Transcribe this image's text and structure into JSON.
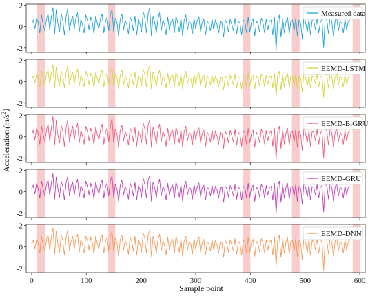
{
  "chart_data": {
    "type": "line",
    "xlabel": "Sample point",
    "ylabel": "Acceleration",
    "ylabel_unit": "m/s",
    "ylabel_unit_exponent": "2",
    "xlim": [
      -10,
      610
    ],
    "ylim": [
      -2.4,
      2.1
    ],
    "xticks": [
      0,
      100,
      200,
      300,
      400,
      500,
      600
    ],
    "yticks": [
      -2,
      0,
      2
    ],
    "highlight_bands": [
      [
        10,
        24
      ],
      [
        140,
        153
      ],
      [
        387,
        400
      ],
      [
        476,
        490
      ],
      [
        587,
        600
      ]
    ],
    "legend_position": "top-right",
    "series": [
      {
        "name": "Measured data",
        "color": "#1fa3d9",
        "values": [
          0.3,
          0.6,
          -0.2,
          0.8,
          0.4,
          -0.6,
          1.1,
          0.2,
          -0.4,
          0.7,
          1.2,
          -0.3,
          0.9,
          1.8,
          -0.7,
          1.6,
          0.3,
          -0.5,
          1.2,
          0.6,
          -0.8,
          0.9,
          1.7,
          -0.4,
          0.5,
          1.0,
          -0.2,
          0.8,
          1.3,
          -0.5,
          0.7,
          0.2,
          -0.6,
          1.1,
          0.6,
          -0.3,
          0.9,
          0.4,
          -0.7,
          1.0,
          0.3,
          -0.2,
          0.8,
          1.2,
          -0.6,
          0.5,
          0.9,
          -0.4,
          1.1,
          1.6,
          -0.5,
          0.8,
          0.4,
          -0.9,
          0.7,
          1.2,
          -0.3,
          0.6,
          0.2,
          -0.7,
          0.9,
          0.5,
          -0.4,
          1.0,
          -0.8,
          0.6,
          0.3,
          -0.5,
          1.4,
          0.8,
          -0.6,
          1.2,
          1.8,
          -0.9,
          1.0,
          0.4,
          -0.6,
          0.7,
          1.3,
          -0.4,
          0.6,
          0.2,
          -0.8,
          0.9,
          -0.3,
          0.5,
          0.7,
          -0.6,
          1.0,
          0.4,
          -0.5,
          0.8,
          -0.9,
          0.6,
          1.1,
          -0.3,
          0.5,
          0.3,
          -0.7,
          0.8,
          -0.2,
          0.6,
          0.9,
          -0.5,
          0.4,
          0.7,
          -0.8,
          0.5,
          0.3,
          -0.4,
          0.7,
          -0.3,
          0.6,
          0.2,
          -0.6,
          0.5,
          0.4,
          -1.0,
          0.6,
          0.3,
          -0.5,
          0.7,
          0.2,
          -0.4,
          0.8,
          -0.7,
          0.5,
          0.3,
          -0.8,
          0.6,
          0.5,
          -0.6,
          0.9,
          -0.5,
          0.4,
          0.7,
          -0.9,
          0.5,
          0.3,
          -0.5,
          0.8,
          0.4,
          -0.6,
          0.7,
          -0.3,
          0.5,
          0.6,
          -0.8,
          0.9,
          -2.3,
          0.6,
          1.1,
          -1.0,
          0.8,
          -0.6,
          0.4,
          0.9,
          -0.7,
          0.5,
          0.6,
          -0.4,
          0.8,
          -0.9,
          0.6,
          0.3,
          -1.2,
          1.0,
          0.4,
          -0.5,
          0.7,
          -0.8,
          0.6,
          0.5,
          -0.3,
          0.8,
          -0.6,
          0.4,
          0.7,
          -2.0,
          1.2,
          0.5,
          -0.7,
          1.0,
          0.4,
          -0.9,
          0.6,
          0.8,
          -0.4,
          0.5,
          0.3,
          -0.6,
          0.7,
          -0.3,
          0.5,
          0.6
        ],
        "x_start": 0,
        "x_step": 3
      },
      {
        "name": "EEMD-LSTM",
        "color": "#d4d43a",
        "values": [
          0.3,
          0.5,
          -0.1,
          0.7,
          0.4,
          -0.5,
          1.0,
          0.3,
          -0.3,
          0.7,
          1.1,
          -0.2,
          0.8,
          1.6,
          -0.6,
          1.4,
          0.3,
          -0.4,
          1.0,
          0.6,
          -0.6,
          0.8,
          1.5,
          -0.3,
          0.5,
          0.9,
          -0.2,
          0.7,
          1.2,
          -0.4,
          0.6,
          0.2,
          -0.5,
          1.0,
          0.5,
          -0.3,
          0.8,
          0.4,
          -0.6,
          0.9,
          0.3,
          -0.2,
          0.7,
          1.1,
          -0.5,
          0.5,
          0.8,
          -0.3,
          1.0,
          1.4,
          -0.4,
          0.7,
          0.4,
          -0.7,
          0.6,
          1.1,
          -0.3,
          0.5,
          0.2,
          -0.6,
          0.8,
          0.5,
          -0.3,
          0.9,
          -0.6,
          0.5,
          0.3,
          -0.4,
          1.2,
          0.7,
          -0.5,
          1.1,
          1.5,
          -0.7,
          0.9,
          0.4,
          -0.5,
          0.6,
          1.1,
          -0.3,
          0.5,
          0.2,
          -0.6,
          0.8,
          -0.2,
          0.5,
          0.6,
          -0.5,
          0.9,
          0.4,
          -0.4,
          0.7,
          -0.7,
          0.5,
          1.0,
          -0.2,
          0.4,
          0.3,
          -0.6,
          0.7,
          -0.2,
          0.5,
          0.8,
          -0.4,
          0.4,
          0.6,
          -0.6,
          0.5,
          0.3,
          -0.3,
          0.6,
          -0.2,
          0.5,
          0.2,
          -0.5,
          0.4,
          0.4,
          -0.8,
          0.5,
          0.3,
          -0.4,
          0.6,
          0.2,
          -0.3,
          0.7,
          -0.6,
          0.4,
          0.3,
          -0.7,
          0.5,
          0.4,
          -0.5,
          0.8,
          -0.4,
          0.4,
          0.6,
          -0.7,
          0.5,
          0.3,
          -0.4,
          0.7,
          0.4,
          -0.5,
          0.6,
          -0.2,
          0.4,
          0.5,
          -0.6,
          0.8,
          -1.4,
          0.6,
          1.0,
          -0.8,
          0.7,
          -0.5,
          0.4,
          0.8,
          -0.6,
          0.5,
          0.5,
          -0.3,
          0.7,
          -0.7,
          0.5,
          0.3,
          -1.0,
          0.9,
          0.4,
          -0.4,
          0.6,
          -0.6,
          0.5,
          0.4,
          -0.2,
          0.7,
          -0.5,
          0.4,
          0.6,
          -1.5,
          1.0,
          0.5,
          -0.6,
          0.9,
          0.4,
          -0.7,
          0.5,
          0.7,
          -0.3,
          0.5,
          0.3,
          -0.5,
          0.6,
          -0.2,
          0.4,
          0.5
        ],
        "x_start": 0,
        "x_step": 3
      },
      {
        "name": "EEMD-BiGRU",
        "color": "#ee5a80",
        "values": [
          0.2,
          0.6,
          -0.3,
          0.8,
          0.3,
          -0.7,
          1.0,
          0.2,
          -0.5,
          0.6,
          1.2,
          -0.4,
          0.8,
          1.9,
          -0.8,
          1.5,
          0.2,
          -0.6,
          1.1,
          0.5,
          -0.9,
          0.8,
          1.6,
          -0.5,
          0.4,
          1.0,
          -0.3,
          0.7,
          1.3,
          -0.6,
          0.6,
          0.1,
          -0.7,
          1.0,
          0.5,
          -0.4,
          0.8,
          0.3,
          -0.8,
          0.9,
          0.2,
          -0.3,
          0.7,
          1.2,
          -0.7,
          0.4,
          0.8,
          -0.5,
          1.0,
          1.7,
          -0.6,
          0.7,
          0.3,
          -1.0,
          0.6,
          1.1,
          -0.4,
          0.5,
          0.1,
          -0.8,
          0.8,
          0.4,
          -0.5,
          0.9,
          -0.9,
          0.5,
          0.2,
          -0.6,
          1.3,
          0.7,
          -0.7,
          1.1,
          1.6,
          -1.0,
          0.9,
          0.3,
          -0.7,
          0.6,
          1.2,
          -0.5,
          0.5,
          0.1,
          -0.9,
          0.8,
          -0.4,
          0.4,
          0.6,
          -0.7,
          0.9,
          0.3,
          -0.6,
          0.7,
          -1.0,
          0.5,
          1.0,
          -0.4,
          0.4,
          0.2,
          -0.8,
          0.7,
          -0.3,
          0.5,
          0.8,
          -0.6,
          0.3,
          0.6,
          -0.9,
          0.4,
          0.2,
          -0.5,
          0.6,
          -0.4,
          0.5,
          0.1,
          -0.7,
          0.4,
          0.3,
          -1.1,
          0.5,
          0.2,
          -0.6,
          0.6,
          0.1,
          -0.5,
          0.7,
          -0.8,
          0.4,
          0.2,
          -0.9,
          0.5,
          0.4,
          -0.7,
          0.8,
          -0.6,
          0.3,
          0.6,
          -1.0,
          0.4,
          0.2,
          -0.6,
          0.7,
          0.3,
          -0.7,
          0.6,
          -0.4,
          0.4,
          0.5,
          -0.9,
          0.8,
          -2.2,
          0.5,
          1.0,
          -1.1,
          0.7,
          -0.7,
          0.3,
          0.8,
          -0.8,
          0.4,
          0.5,
          -0.5,
          0.7,
          -1.0,
          0.5,
          0.2,
          -1.3,
          0.9,
          0.3,
          -0.6,
          0.6,
          -0.9,
          0.5,
          0.4,
          -0.4,
          0.7,
          -0.7,
          0.3,
          0.6,
          -2.0,
          1.1,
          0.4,
          -0.8,
          0.9,
          0.3,
          -1.0,
          0.5,
          0.7,
          -0.5,
          0.4,
          0.2,
          -0.7,
          0.6,
          -0.4,
          0.4,
          0.5
        ],
        "x_start": 0,
        "x_step": 3
      },
      {
        "name": "EEMD-GRU",
        "color": "#c040b8",
        "values": [
          0.3,
          0.6,
          -0.2,
          0.8,
          0.3,
          -0.6,
          1.0,
          0.3,
          -0.4,
          0.7,
          1.1,
          -0.3,
          0.8,
          1.7,
          -0.7,
          1.4,
          0.3,
          -0.5,
          1.0,
          0.5,
          -0.8,
          0.8,
          1.5,
          -0.4,
          0.5,
          0.9,
          -0.3,
          0.7,
          1.2,
          -0.5,
          0.6,
          0.2,
          -0.6,
          1.0,
          0.5,
          -0.3,
          0.8,
          0.3,
          -0.7,
          0.9,
          0.3,
          -0.2,
          0.7,
          1.1,
          -0.6,
          0.5,
          0.8,
          -0.4,
          1.0,
          1.5,
          -0.5,
          0.7,
          0.3,
          -0.9,
          0.6,
          1.1,
          -0.3,
          0.5,
          0.2,
          -0.7,
          0.8,
          0.4,
          -0.4,
          0.9,
          -0.8,
          0.5,
          0.3,
          -0.5,
          1.3,
          0.7,
          -0.6,
          1.1,
          1.5,
          -0.9,
          0.9,
          0.4,
          -0.6,
          0.6,
          1.2,
          -0.4,
          0.5,
          0.2,
          -0.8,
          0.8,
          -0.3,
          0.4,
          0.6,
          -0.6,
          0.9,
          0.4,
          -0.5,
          0.7,
          -0.9,
          0.5,
          1.0,
          -0.3,
          0.4,
          0.3,
          -0.7,
          0.7,
          -0.2,
          0.5,
          0.8,
          -0.5,
          0.4,
          0.6,
          -0.8,
          0.4,
          0.3,
          -0.4,
          0.6,
          -0.3,
          0.5,
          0.2,
          -0.6,
          0.4,
          0.4,
          -1.0,
          0.5,
          0.3,
          -0.5,
          0.6,
          0.2,
          -0.4,
          0.7,
          -0.7,
          0.4,
          0.3,
          -0.8,
          0.5,
          0.4,
          -0.6,
          0.8,
          -0.5,
          0.4,
          0.6,
          -0.9,
          0.4,
          0.3,
          -0.5,
          0.7,
          0.4,
          -0.6,
          0.6,
          -0.3,
          0.4,
          0.5,
          -0.8,
          0.8,
          -2.1,
          0.5,
          1.0,
          -1.0,
          0.7,
          -0.6,
          0.4,
          0.8,
          -0.7,
          0.4,
          0.5,
          -0.4,
          0.7,
          -0.9,
          0.5,
          0.3,
          -1.2,
          0.9,
          0.4,
          -0.5,
          0.6,
          -0.8,
          0.5,
          0.4,
          -0.3,
          0.7,
          -0.6,
          0.4,
          0.6,
          -1.9,
          1.0,
          0.5,
          -0.7,
          0.9,
          0.4,
          -0.9,
          0.5,
          0.7,
          -0.4,
          0.4,
          0.3,
          -0.6,
          0.6,
          -0.3,
          0.4,
          0.5
        ],
        "x_start": 0,
        "x_step": 3
      },
      {
        "name": "EEMD-DNN",
        "color": "#f59a5a",
        "values": [
          0.3,
          0.6,
          -0.2,
          0.7,
          0.4,
          -0.6,
          1.0,
          0.2,
          -0.4,
          0.7,
          1.1,
          -0.3,
          0.9,
          1.8,
          -0.7,
          1.5,
          0.3,
          -0.5,
          1.1,
          0.6,
          -0.8,
          0.9,
          1.6,
          -0.4,
          0.5,
          1.0,
          -0.2,
          0.8,
          1.2,
          -0.5,
          0.7,
          0.2,
          -0.6,
          1.0,
          0.6,
          -0.3,
          0.9,
          0.4,
          -0.7,
          1.0,
          0.3,
          -0.2,
          0.8,
          1.1,
          -0.6,
          0.5,
          0.9,
          -0.4,
          1.0,
          1.5,
          -0.5,
          0.8,
          0.4,
          -0.9,
          0.7,
          1.1,
          -0.3,
          0.6,
          0.2,
          -0.7,
          0.9,
          0.5,
          -0.4,
          1.0,
          -0.8,
          0.6,
          0.3,
          -0.5,
          1.3,
          0.8,
          -0.6,
          1.1,
          1.6,
          -0.9,
          1.0,
          0.4,
          -0.6,
          0.7,
          1.2,
          -0.4,
          0.6,
          0.2,
          -0.8,
          0.9,
          -0.3,
          0.5,
          0.7,
          -0.6,
          1.0,
          0.4,
          -0.5,
          0.8,
          -0.9,
          0.6,
          1.0,
          -0.3,
          0.5,
          0.3,
          -0.7,
          0.8,
          -0.2,
          0.6,
          0.9,
          -0.5,
          0.4,
          0.7,
          -0.8,
          0.5,
          0.3,
          -0.4,
          0.7,
          -0.3,
          0.6,
          0.2,
          -0.6,
          0.5,
          0.4,
          -1.0,
          0.6,
          0.3,
          -0.5,
          0.7,
          0.2,
          -0.4,
          0.8,
          -0.7,
          0.5,
          0.3,
          -0.8,
          0.6,
          0.5,
          -0.6,
          0.9,
          -0.5,
          0.4,
          0.7,
          -0.9,
          0.5,
          0.3,
          -0.5,
          0.8,
          0.4,
          -0.6,
          0.7,
          -0.3,
          0.5,
          0.6,
          -0.8,
          0.9,
          -1.9,
          0.6,
          1.1,
          -1.0,
          0.8,
          -0.6,
          0.4,
          0.9,
          -0.7,
          0.5,
          0.6,
          -0.4,
          0.8,
          -0.9,
          0.6,
          0.3,
          -1.2,
          1.0,
          0.4,
          -0.5,
          0.7,
          -0.8,
          0.6,
          0.5,
          -0.3,
          0.8,
          -0.6,
          0.4,
          0.7,
          -2.2,
          1.2,
          0.5,
          -0.7,
          1.0,
          0.4,
          -0.9,
          0.6,
          0.8,
          -0.4,
          0.5,
          0.3,
          -0.6,
          0.7,
          -0.3,
          0.5,
          0.6
        ],
        "x_start": 0,
        "x_step": 3
      }
    ]
  }
}
